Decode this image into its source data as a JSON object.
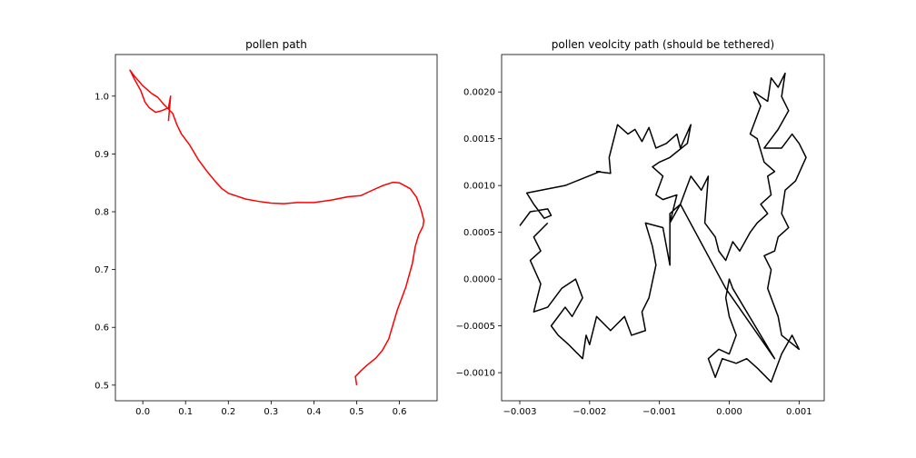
{
  "chart_data": [
    {
      "type": "line",
      "title": "pollen path",
      "x": [
        0.06,
        0.065,
        0.06,
        0.045,
        0.03,
        0.015,
        0.005,
        -0.005,
        -0.02,
        -0.03,
        -0.02,
        0.0,
        0.02,
        0.035,
        0.05,
        0.07,
        0.08,
        0.09,
        0.11,
        0.13,
        0.15,
        0.17,
        0.185,
        0.2,
        0.22,
        0.24,
        0.27,
        0.3,
        0.33,
        0.36,
        0.4,
        0.44,
        0.48,
        0.51,
        0.53,
        0.56,
        0.585,
        0.6,
        0.625,
        0.64,
        0.65,
        0.657,
        0.655,
        0.645,
        0.637,
        0.63,
        0.615,
        0.595,
        0.575,
        0.56,
        0.545,
        0.525,
        0.51,
        0.497,
        0.5
      ],
      "series": [
        {
          "color": "#ff0000",
          "values": [
            0.957,
            1.0,
            0.98,
            0.975,
            0.972,
            0.98,
            0.99,
            1.01,
            1.03,
            1.045,
            1.035,
            1.018,
            1.005,
            0.998,
            0.985,
            0.97,
            0.95,
            0.935,
            0.915,
            0.89,
            0.87,
            0.852,
            0.84,
            0.832,
            0.827,
            0.822,
            0.818,
            0.815,
            0.814,
            0.816,
            0.816,
            0.82,
            0.826,
            0.828,
            0.835,
            0.845,
            0.851,
            0.85,
            0.84,
            0.825,
            0.805,
            0.785,
            0.775,
            0.76,
            0.74,
            0.71,
            0.67,
            0.63,
            0.58,
            0.56,
            0.547,
            0.535,
            0.525,
            0.515,
            0.5
          ]
        }
      ],
      "xlim": [
        -0.064,
        0.688
      ],
      "xticks": [
        {
          "value": 0.0,
          "label": "0.0"
        },
        0.1,
        0.2,
        0.3,
        0.4,
        0.5,
        0.6
      ],
      "ylim": [
        0.473,
        1.072
      ],
      "yticks": [
        0.5,
        0.6,
        0.7,
        0.8,
        0.9,
        {
          "value": 1.0,
          "label": "1.0"
        }
      ]
    },
    {
      "type": "line",
      "title": "pollen veolcity path (should be tethered)",
      "x": [
        -0.003,
        -0.00285,
        -0.0026,
        -0.00255,
        -0.00265,
        -0.0028,
        -0.0029,
        -0.00235,
        -0.00185,
        -0.0019,
        -0.0017,
        -0.00172,
        -0.0016,
        -0.00145,
        -0.00135,
        -0.00125,
        -0.00115,
        -0.00105,
        -0.0009,
        -0.00075,
        -0.0007,
        -0.00055,
        -0.0006,
        -0.00085,
        -0.001,
        -0.0011,
        -0.00095,
        -0.00105,
        -0.00095,
        -0.00075,
        -0.00085,
        -0.0007,
        -0.0006,
        -0.00055,
        -0.0005,
        -0.0004,
        -0.0003,
        -0.00035,
        -0.0002,
        -0.00015,
        -5e-05,
        5e-05,
        0.00015,
        0.0003,
        0.0004,
        0.00055,
        0.00045,
        0.0006,
        0.00055,
        0.00065,
        0.0005,
        0.0004,
        0.0003,
        0.00045,
        0.00035,
        0.00055,
        0.0006,
        0.0007,
        0.0008,
        0.00075,
        0.00085,
        0.0007,
        0.0006,
        0.0005,
        0.00075,
        0.0009,
        0.001,
        0.0011,
        0.00095,
        0.0008,
        0.00075,
        0.00085,
        0.0007,
        0.00065,
        0.0005,
        0.0006,
        0.00055,
        0.0007,
        0.00075,
        0.001,
        0.0009,
        0.00075,
        0.0006,
        0.0004,
        0.00025,
        0.0001,
        -0.0001,
        -0.0002,
        -0.0003,
        -0.00015,
        0.0,
        0.0001,
        0.0,
        -5e-05,
        0.0,
        5e-05,
        0.00065,
        -5e-05,
        -0.0007,
        -0.00085,
        -0.00085,
        -0.00095,
        -0.0012,
        -0.0011,
        -0.00105,
        -0.00115,
        -0.00125,
        -0.0012,
        -0.0014,
        -0.0015,
        -0.0017,
        -0.0019,
        -0.002,
        -0.00205,
        -0.0021,
        -0.0023,
        -0.00245,
        -0.00255,
        -0.00235,
        -0.00225,
        -0.0021,
        -0.0022,
        -0.0024,
        -0.0026,
        -0.0028,
        -0.0027,
        -0.00285,
        -0.0027,
        -0.0028,
        -0.0026
      ],
      "series": [
        {
          "color": "#000000",
          "values": [
            0.00057,
            0.00072,
            0.00075,
            0.00068,
            0.00065,
            0.0008,
            0.00092,
            0.001,
            0.00115,
            0.00115,
            0.00113,
            0.0013,
            0.00165,
            0.00155,
            0.0016,
            0.00147,
            0.00162,
            0.0014,
            0.00145,
            0.00155,
            0.0014,
            0.00165,
            0.00145,
            0.0013,
            0.00125,
            0.0012,
            0.0011,
            0.0009,
            0.00085,
            0.0009,
            0.0006,
            0.0008,
            0.001,
            0.0011,
            0.00105,
            0.00095,
            0.0011,
            0.0006,
            0.00045,
            0.0003,
            0.0002,
            0.0004,
            0.0003,
            0.0005,
            0.0006,
            0.0007,
            0.0008,
            0.0009,
            0.0011,
            0.00115,
            0.00125,
            0.0015,
            0.00155,
            0.00185,
            0.002,
            0.0019,
            0.00215,
            0.00205,
            0.0022,
            0.00195,
            0.0018,
            0.0016,
            0.0015,
            0.0014,
            0.0014,
            0.00155,
            0.00145,
            0.0013,
            0.00105,
            0.00095,
            0.0007,
            0.00055,
            0.00045,
            0.0003,
            0.00025,
            0.0001,
            -0.0001,
            -0.0004,
            -0.0006,
            -0.00075,
            -0.0006,
            -0.0008,
            -0.0011,
            -0.00095,
            -0.00085,
            -0.0009,
            -0.00085,
            -0.00105,
            -0.00085,
            -0.00075,
            -0.0008,
            -0.0006,
            -0.0004,
            -0.0002,
            0.0,
            -0.0001,
            -0.00085,
            -0.0001,
            0.0008,
            0.0007,
            0.00015,
            0.00055,
            0.0006,
            0.00035,
            0.00015,
            -0.0002,
            -0.00035,
            -0.00055,
            -0.0006,
            -0.0004,
            -0.00055,
            -0.0004,
            -0.0007,
            -0.0006,
            -0.00085,
            -0.0007,
            -0.0006,
            -0.0005,
            -0.0003,
            -0.0004,
            -0.0002,
            0.0,
            -0.0001,
            -0.0003,
            -0.00035,
            -5e-05,
            0.0002,
            0.0003,
            0.00045,
            0.0006
          ]
        }
      ],
      "xlim": [
        -0.00326,
        0.00136
      ],
      "xticks": [
        {
          "value": -0.003,
          "label": "−0.003"
        },
        {
          "value": -0.002,
          "label": "−0.002"
        },
        {
          "value": -0.001,
          "label": "−0.001"
        },
        {
          "value": 0.0,
          "label": "0.000"
        },
        0.001
      ],
      "ylim": [
        -0.0013,
        0.0024
      ],
      "yticks": [
        {
          "value": -0.001,
          "label": "−0.0010"
        },
        {
          "value": -0.0005,
          "label": "−0.0005"
        },
        {
          "value": 0.0,
          "label": "0.0000"
        },
        {
          "value": 0.0005,
          "label": "0.0005"
        },
        {
          "value": 0.001,
          "label": "0.0010"
        },
        {
          "value": 0.0015,
          "label": "0.0015"
        },
        {
          "value": 0.002,
          "label": "0.0020"
        }
      ]
    }
  ]
}
